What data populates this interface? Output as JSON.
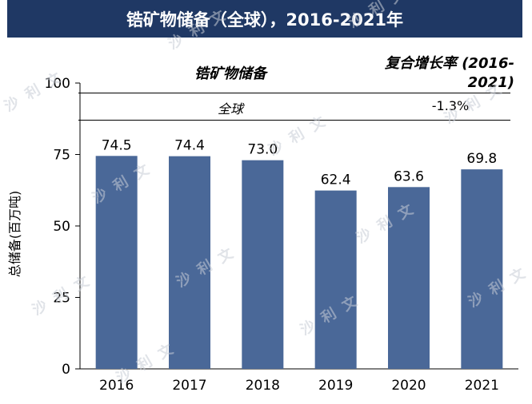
{
  "header": {
    "title": "锆矿物储备（全球），2016-2021年"
  },
  "cagr_table": {
    "col1_header": "锆矿物储备",
    "col2_header": "复合增长率 (2016-2021)",
    "rows": [
      {
        "region": "全球",
        "value": "-1.3%"
      }
    ]
  },
  "colors": {
    "header_bg": "#1f3864",
    "bar": "#4a6898",
    "watermark": "#c8cdd6"
  },
  "watermark_text": "沙利文",
  "chart_data": {
    "type": "bar",
    "title": "锆矿物储备（全球），2016-2021年",
    "categories": [
      "2016",
      "2017",
      "2018",
      "2019",
      "2020",
      "2021"
    ],
    "values": [
      74.5,
      74.4,
      73.0,
      62.4,
      63.6,
      69.8
    ],
    "value_labels": [
      "74.5",
      "74.4",
      "73.0",
      "62.4",
      "63.6",
      "69.8"
    ],
    "ylabel": "总储备(百万吨)",
    "xlabel": "",
    "ylim": [
      0,
      100
    ],
    "yticks": [
      0,
      25,
      50,
      75,
      100
    ],
    "grid": false
  }
}
